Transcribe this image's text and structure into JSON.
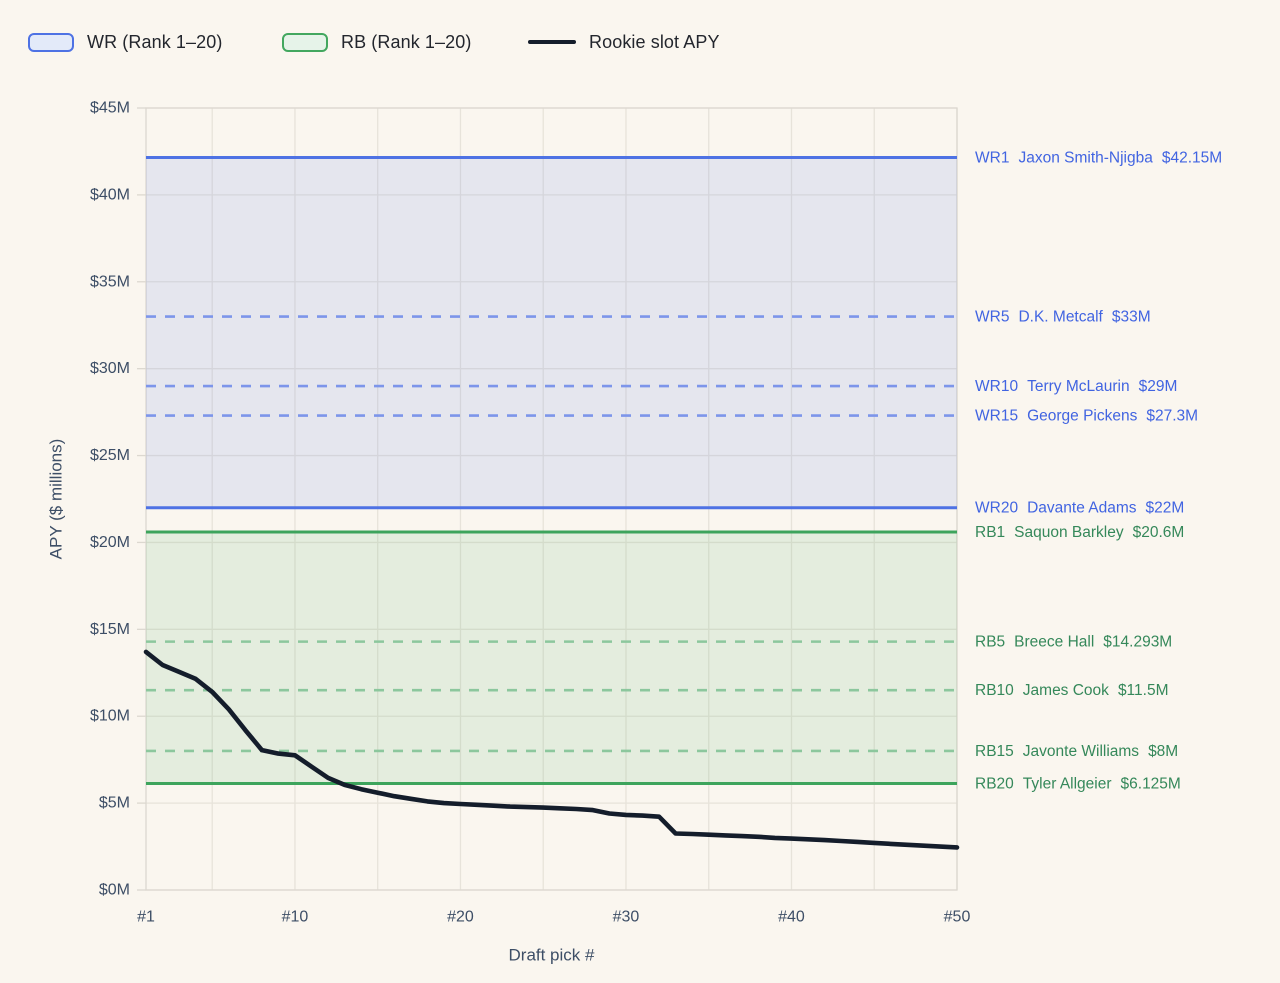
{
  "legend": {
    "items": [
      {
        "label": "WR (Rank 1–20)",
        "swatch": "band",
        "stroke": "#4e72e4",
        "fill": "#e3eaf9"
      },
      {
        "label": "RB (Rank 1–20)",
        "swatch": "band",
        "stroke": "#43a75f",
        "fill": "#e6f3e9"
      },
      {
        "label": "Rookie slot APY",
        "swatch": "line",
        "stroke": "#141d2b",
        "fill": "#141d2b"
      }
    ]
  },
  "chart_data": {
    "type": "line",
    "title": "",
    "xlabel": "Draft pick #",
    "ylabel": "APY ($ millions)",
    "xlim": [
      1,
      50
    ],
    "ylim": [
      0,
      45
    ],
    "grid": true,
    "x_ticks": [
      1,
      10,
      20,
      30,
      40,
      50
    ],
    "x_tick_labels": [
      "#1",
      "#10",
      "#20",
      "#30",
      "#40",
      "#50"
    ],
    "x_gridlines": [
      5,
      10,
      15,
      20,
      25,
      30,
      35,
      40,
      45,
      50
    ],
    "y_ticks": [
      0,
      5,
      10,
      15,
      20,
      25,
      30,
      35,
      40,
      45
    ],
    "y_tick_labels": [
      "$0M",
      "$5M",
      "$10M",
      "$15M",
      "$20M",
      "$25M",
      "$30M",
      "$35M",
      "$40M",
      "$45M"
    ],
    "bands": [
      {
        "name": "WR (Rank 1-20)",
        "high": 42.15,
        "low": 22,
        "inner_lines": [
          33,
          29,
          27.3
        ],
        "edge_color": "#4e72e4",
        "dash_color": "#7d95ea",
        "fill_color": "rgba(93,123,229,0.13)"
      },
      {
        "name": "RB (Rank 1-20)",
        "high": 20.6,
        "low": 6.125,
        "inner_lines": [
          14.293,
          11.5,
          8
        ],
        "edge_color": "#3da45c",
        "dash_color": "#8cc79d",
        "fill_color": "rgba(88,175,112,0.13)"
      }
    ],
    "series": [
      {
        "name": "Rookie slot APY",
        "color": "#141d2b",
        "x": [
          1,
          2,
          3,
          4,
          5,
          6,
          7,
          8,
          9,
          10,
          11,
          12,
          13,
          14,
          15,
          16,
          17,
          18,
          19,
          20,
          21,
          22,
          23,
          24,
          25,
          26,
          27,
          28,
          29,
          30,
          31,
          32,
          33,
          34,
          35,
          36,
          37,
          38,
          39,
          40,
          41,
          42,
          43,
          44,
          45,
          46,
          47,
          48,
          49,
          50
        ],
        "y": [
          13.7,
          12.95,
          12.55,
          12.15,
          11.4,
          10.4,
          9.2,
          8.05,
          7.85,
          7.75,
          7.1,
          6.45,
          6.05,
          5.8,
          5.6,
          5.4,
          5.25,
          5.1,
          5.0,
          4.95,
          4.9,
          4.85,
          4.8,
          4.77,
          4.74,
          4.7,
          4.66,
          4.6,
          4.4,
          4.32,
          4.28,
          4.22,
          3.25,
          3.22,
          3.18,
          3.14,
          3.1,
          3.06,
          3.0,
          2.96,
          2.92,
          2.87,
          2.82,
          2.77,
          2.71,
          2.65,
          2.6,
          2.55,
          2.5,
          2.45
        ]
      }
    ],
    "annotations": [
      {
        "rank": "WR1",
        "player": "Jaxon Smith-Njigba",
        "value": "$42.15M",
        "y": 42.15,
        "group": "wr"
      },
      {
        "rank": "WR5",
        "player": "D.K. Metcalf",
        "value": "$33M",
        "y": 33,
        "group": "wr"
      },
      {
        "rank": "WR10",
        "player": "Terry McLaurin",
        "value": "$29M",
        "y": 29,
        "group": "wr"
      },
      {
        "rank": "WR15",
        "player": "George Pickens",
        "value": "$27.3M",
        "y": 27.3,
        "group": "wr"
      },
      {
        "rank": "WR20",
        "player": "Davante Adams",
        "value": "$22M",
        "y": 22,
        "group": "wr"
      },
      {
        "rank": "RB1",
        "player": "Saquon Barkley",
        "value": "$20.6M",
        "y": 20.6,
        "group": "rb"
      },
      {
        "rank": "RB5",
        "player": "Breece Hall",
        "value": "$14.293M",
        "y": 14.293,
        "group": "rb"
      },
      {
        "rank": "RB10",
        "player": "James Cook",
        "value": "$11.5M",
        "y": 11.5,
        "group": "rb"
      },
      {
        "rank": "RB15",
        "player": "Javonte Williams",
        "value": "$8M",
        "y": 8,
        "group": "rb"
      },
      {
        "rank": "RB20",
        "player": "Tyler Allgeier",
        "value": "$6.125M",
        "y": 6.125,
        "group": "rb"
      }
    ],
    "annotation_colors": {
      "wr": "#4164e1",
      "rb": "#35885a"
    },
    "legend_position": "top-left"
  },
  "colors": {
    "background": "#faf6ef",
    "gridline": "#e7e3da",
    "plot_border": "#dcd8d0",
    "tick_text": "#3d4e66",
    "axis_title_text": "#3d4e66"
  }
}
